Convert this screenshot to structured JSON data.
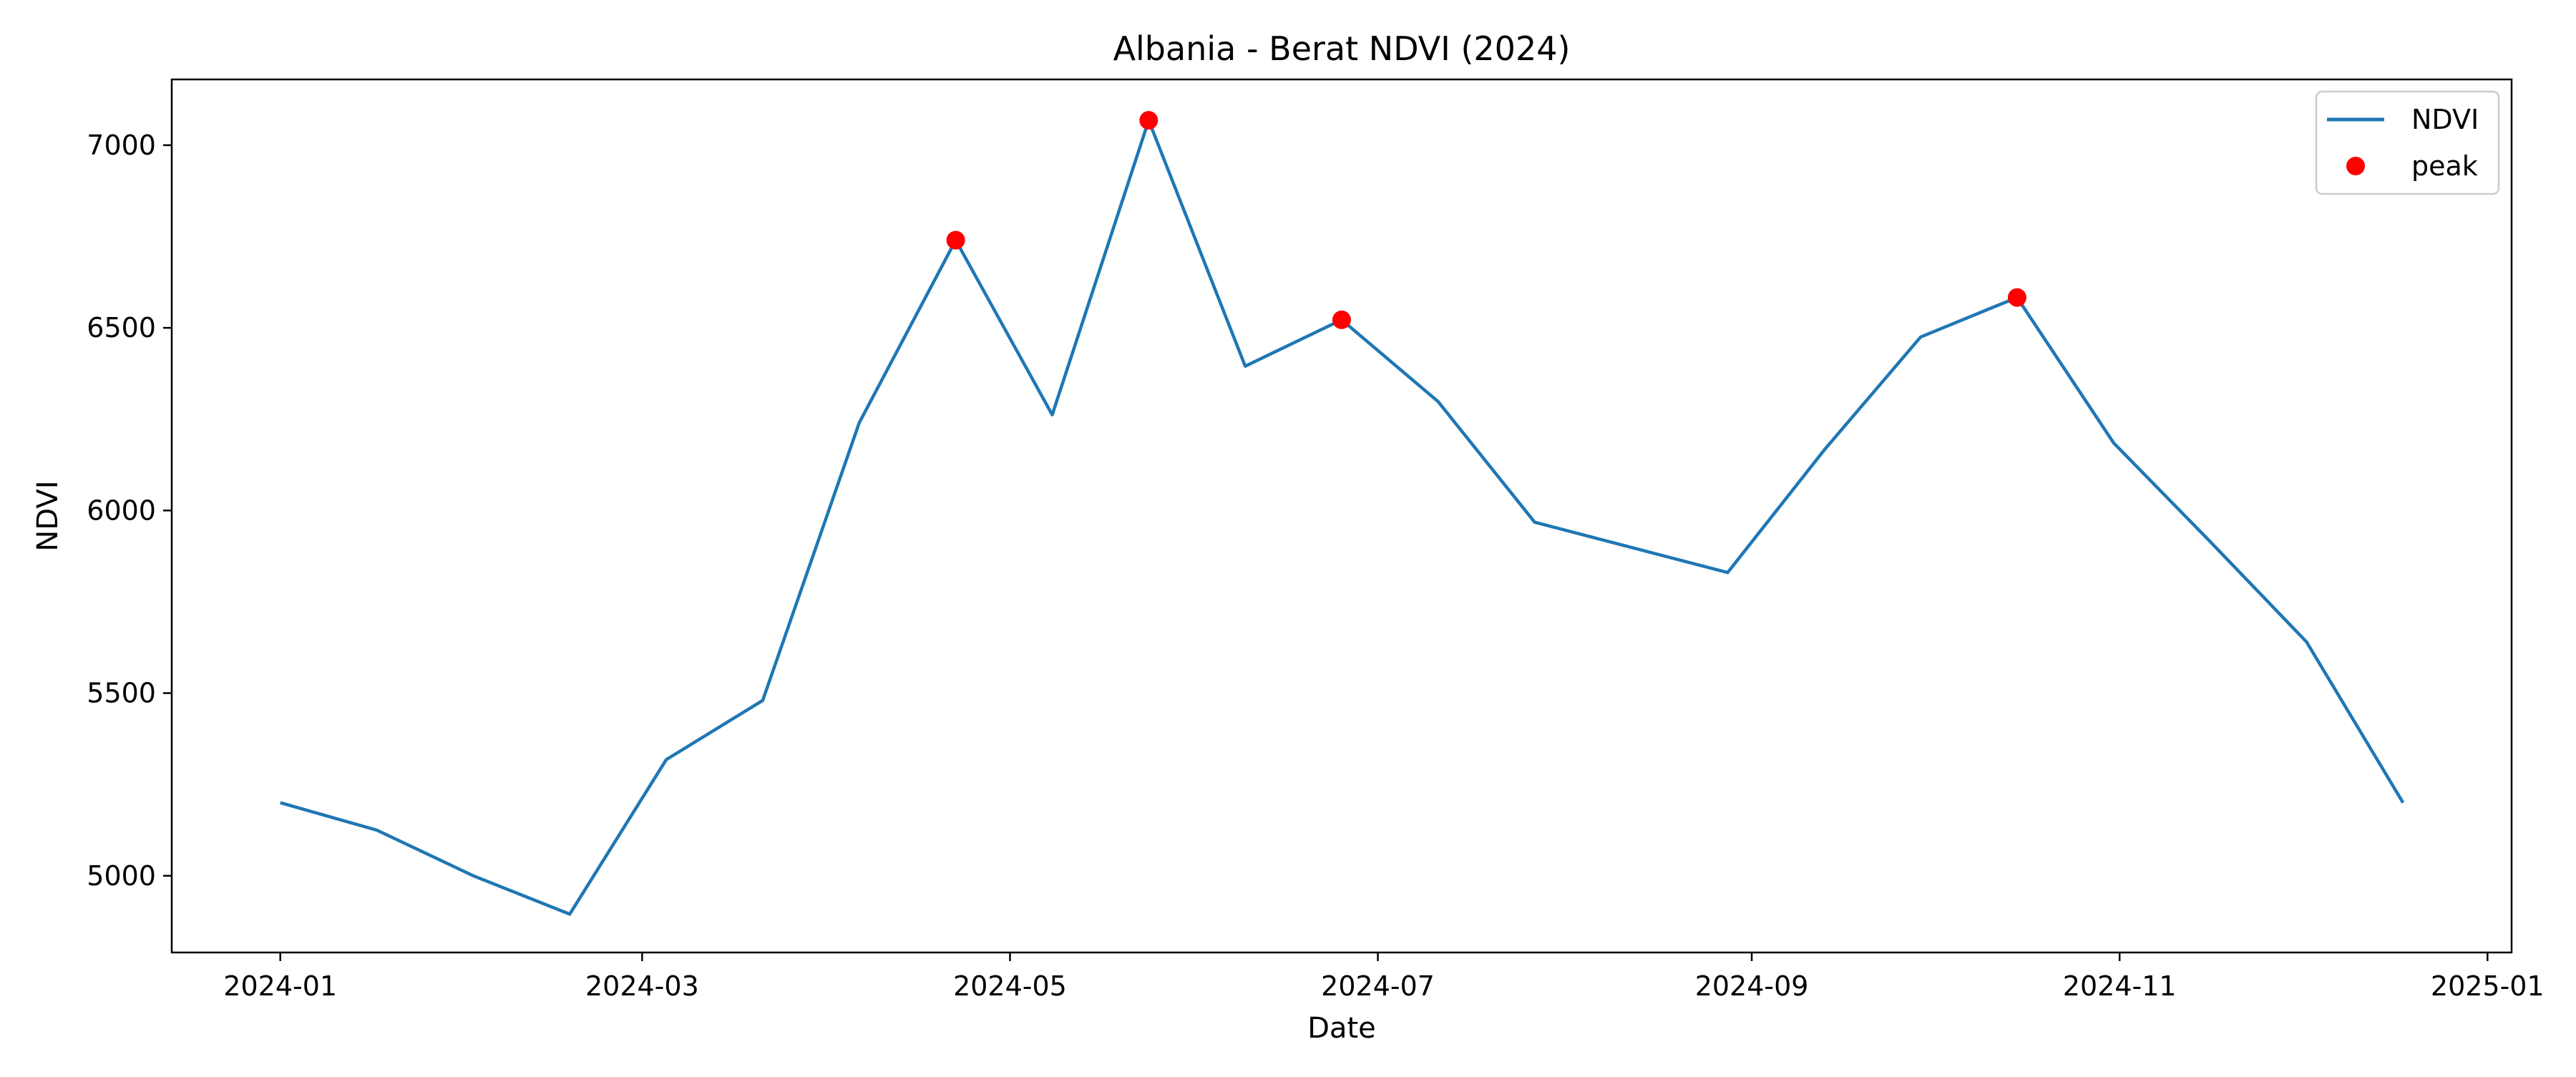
{
  "colors": {
    "series_line": "#1f77b4",
    "peak_marker": "#ff0000",
    "axes": "#000000",
    "background": "#ffffff"
  },
  "chart_data": {
    "type": "line",
    "title": "Albania - Berat NDVI (2024)",
    "xlabel": "Date",
    "ylabel": "NDVI",
    "grid": false,
    "legend_placement": "top-right",
    "xlim": [
      "2023-12-14",
      "2025-01-05"
    ],
    "ylim": [
      4790,
      7180
    ],
    "x_ticks": [
      "2024-01",
      "2024-03",
      "2024-05",
      "2024-07",
      "2024-09",
      "2024-11",
      "2025-01"
    ],
    "y_ticks": [
      5000,
      5500,
      6000,
      6500,
      7000
    ],
    "series": [
      {
        "name": "NDVI",
        "kind": "line",
        "x": [
          "2024-01-01",
          "2024-01-17",
          "2024-02-02",
          "2024-02-18",
          "2024-03-05",
          "2024-03-21",
          "2024-04-06",
          "2024-04-22",
          "2024-05-08",
          "2024-05-24",
          "2024-06-09",
          "2024-06-25",
          "2024-07-11",
          "2024-07-27",
          "2024-08-28",
          "2024-09-13",
          "2024-09-29",
          "2024-10-15",
          "2024-10-31",
          "2024-11-16",
          "2024-12-02",
          "2024-12-18"
        ],
        "y": [
          5200,
          5125,
          5000,
          4895,
          5318,
          5480,
          6240,
          6740,
          6262,
          7068,
          6395,
          6522,
          6298,
          5968,
          5830,
          6165,
          6475,
          6583,
          6185,
          5915,
          5640,
          5200
        ]
      },
      {
        "name": "peak",
        "kind": "markers",
        "x": [
          "2024-04-22",
          "2024-05-24",
          "2024-06-25",
          "2024-10-15"
        ],
        "y": [
          6740,
          7068,
          6522,
          6583
        ]
      }
    ]
  }
}
